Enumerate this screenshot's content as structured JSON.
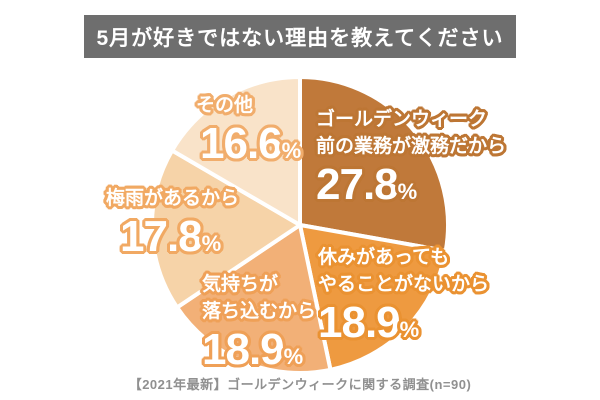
{
  "chart_data": {
    "type": "pie",
    "title": "5月が好きではない理由を教えてください",
    "source_note": "【2021年最新】ゴールデンウィークに関する調査(n=90)",
    "unit": "%",
    "start_angle_deg": 0,
    "direction": "clockwise",
    "legend_position": "labels-on-slices",
    "slices": [
      {
        "label_lines": [
          "ゴールデンウィーク",
          "前の業務が激務だから"
        ],
        "value": 27.8,
        "pct": "27.8",
        "color": "#c0793a",
        "outline_color": "#bd7634"
      },
      {
        "label_lines": [
          "休みがあっても",
          "やることがないから"
        ],
        "value": 18.9,
        "pct": "18.9",
        "color": "#ee9a40",
        "outline_color": "#ea9232"
      },
      {
        "label_lines": [
          "気持ちが",
          "落ち込むから"
        ],
        "value": 18.9,
        "pct": "18.9",
        "color": "#f2b077",
        "outline_color": "#efa057"
      },
      {
        "label_lines": [
          "梅雨があるから"
        ],
        "value": 17.8,
        "pct": "17.8",
        "color": "#f6d3a8",
        "outline_color": "#f1a963"
      },
      {
        "label_lines": [
          "その他"
        ],
        "value": 16.6,
        "pct": "16.6",
        "color": "#f9e3c9",
        "outline_color": "#f1ad6c"
      }
    ],
    "colors": {
      "title_bar_bg": "#6e6e6e",
      "title_text": "#ffffff",
      "label_text": "#ffffff",
      "slice_divider": "#ffffff",
      "footer_text": "#909090"
    }
  }
}
